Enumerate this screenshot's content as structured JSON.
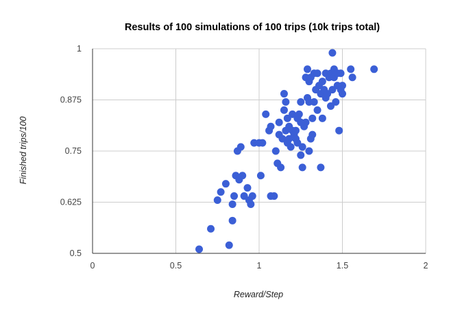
{
  "chart_data": {
    "type": "scatter",
    "title": "Results of 100 simulations of 100 trips (10k trips total)",
    "xlabel": "Reward/Step",
    "ylabel": "Finished trips/100",
    "xlim": [
      0,
      2
    ],
    "ylim": [
      0.5,
      1
    ],
    "x_ticks": [
      "0",
      "0.5",
      "1",
      "1.5",
      "2"
    ],
    "y_ticks": [
      "0.5",
      "0.625",
      "0.75",
      "0.875",
      "1"
    ],
    "grid": true,
    "legend": "none",
    "color": "#3b5fd6",
    "series": [
      {
        "points": [
          [
            0.64,
            0.51
          ],
          [
            0.71,
            0.56
          ],
          [
            0.75,
            0.63
          ],
          [
            0.77,
            0.65
          ],
          [
            0.8,
            0.67
          ],
          [
            0.82,
            0.52
          ],
          [
            0.84,
            0.58
          ],
          [
            0.84,
            0.62
          ],
          [
            0.85,
            0.64
          ],
          [
            0.86,
            0.69
          ],
          [
            0.87,
            0.75
          ],
          [
            0.89,
            0.76
          ],
          [
            0.88,
            0.68
          ],
          [
            0.9,
            0.69
          ],
          [
            0.91,
            0.64
          ],
          [
            0.93,
            0.66
          ],
          [
            0.94,
            0.63
          ],
          [
            0.95,
            0.62
          ],
          [
            0.96,
            0.64
          ],
          [
            0.97,
            0.77
          ],
          [
            1.0,
            0.77
          ],
          [
            1.01,
            0.69
          ],
          [
            1.02,
            0.77
          ],
          [
            1.04,
            0.84
          ],
          [
            1.06,
            0.8
          ],
          [
            1.07,
            0.81
          ],
          [
            1.07,
            0.64
          ],
          [
            1.09,
            0.64
          ],
          [
            1.1,
            0.75
          ],
          [
            1.11,
            0.72
          ],
          [
            1.12,
            0.79
          ],
          [
            1.12,
            0.82
          ],
          [
            1.13,
            0.71
          ],
          [
            1.14,
            0.78
          ],
          [
            1.15,
            0.85
          ],
          [
            1.15,
            0.89
          ],
          [
            1.16,
            0.87
          ],
          [
            1.16,
            0.8
          ],
          [
            1.17,
            0.83
          ],
          [
            1.17,
            0.77
          ],
          [
            1.18,
            0.78
          ],
          [
            1.18,
            0.81
          ],
          [
            1.19,
            0.76
          ],
          [
            1.2,
            0.84
          ],
          [
            1.2,
            0.8
          ],
          [
            1.21,
            0.79
          ],
          [
            1.22,
            0.78
          ],
          [
            1.23,
            0.77
          ],
          [
            1.23,
            0.83
          ],
          [
            1.24,
            0.84
          ],
          [
            1.25,
            0.82
          ],
          [
            1.25,
            0.87
          ],
          [
            1.26,
            0.76
          ],
          [
            1.26,
            0.71
          ],
          [
            1.27,
            0.81
          ],
          [
            1.28,
            0.82
          ],
          [
            1.28,
            0.93
          ],
          [
            1.29,
            0.88
          ],
          [
            1.29,
            0.95
          ],
          [
            1.3,
            0.87
          ],
          [
            1.3,
            0.92
          ],
          [
            1.31,
            0.93
          ],
          [
            1.31,
            0.78
          ],
          [
            1.32,
            0.79
          ],
          [
            1.32,
            0.83
          ],
          [
            1.33,
            0.87
          ],
          [
            1.33,
            0.94
          ],
          [
            1.34,
            0.9
          ],
          [
            1.35,
            0.85
          ],
          [
            1.35,
            0.94
          ],
          [
            1.36,
            0.91
          ],
          [
            1.37,
            0.71
          ],
          [
            1.37,
            0.89
          ],
          [
            1.38,
            0.83
          ],
          [
            1.38,
            0.92
          ],
          [
            1.39,
            0.9
          ],
          [
            1.4,
            0.88
          ],
          [
            1.4,
            0.94
          ],
          [
            1.41,
            0.89
          ],
          [
            1.42,
            0.93
          ],
          [
            1.43,
            0.86
          ],
          [
            1.43,
            0.94
          ],
          [
            1.44,
            0.9
          ],
          [
            1.44,
            0.99
          ],
          [
            1.45,
            0.95
          ],
          [
            1.45,
            0.93
          ],
          [
            1.46,
            0.87
          ],
          [
            1.47,
            0.91
          ],
          [
            1.47,
            0.94
          ],
          [
            1.48,
            0.8
          ],
          [
            1.49,
            0.9
          ],
          [
            1.49,
            0.94
          ],
          [
            1.5,
            0.89
          ],
          [
            1.5,
            0.91
          ],
          [
            1.55,
            0.95
          ],
          [
            1.56,
            0.93
          ],
          [
            1.69,
            0.95
          ],
          [
            1.25,
            0.74
          ],
          [
            1.3,
            0.75
          ],
          [
            1.22,
            0.8
          ]
        ]
      }
    ]
  }
}
